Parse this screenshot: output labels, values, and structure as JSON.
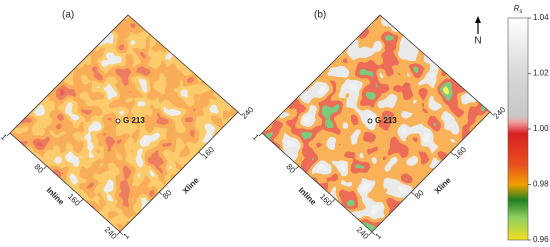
{
  "panels": [
    {
      "label": "(a)",
      "well": "G 213",
      "inline_label": "Inline",
      "xline_label": "Xline",
      "inline_ticks": [
        "1",
        "80",
        "160",
        "240"
      ],
      "xline_ticks": [
        "1",
        "80",
        "160",
        "240"
      ]
    },
    {
      "label": "(b)",
      "well": "G 213",
      "inline_label": "Inline",
      "xline_label": "Xline",
      "inline_ticks": [
        "1",
        "80",
        "160",
        "240"
      ],
      "xline_ticks": [
        "1",
        "80",
        "160",
        "240"
      ]
    }
  ],
  "north": "N",
  "colorbar": {
    "title": "R",
    "title_sub": "s",
    "ticks": [
      "1.04",
      "1.02",
      "1.00",
      "0.98",
      "0.96"
    ]
  }
}
